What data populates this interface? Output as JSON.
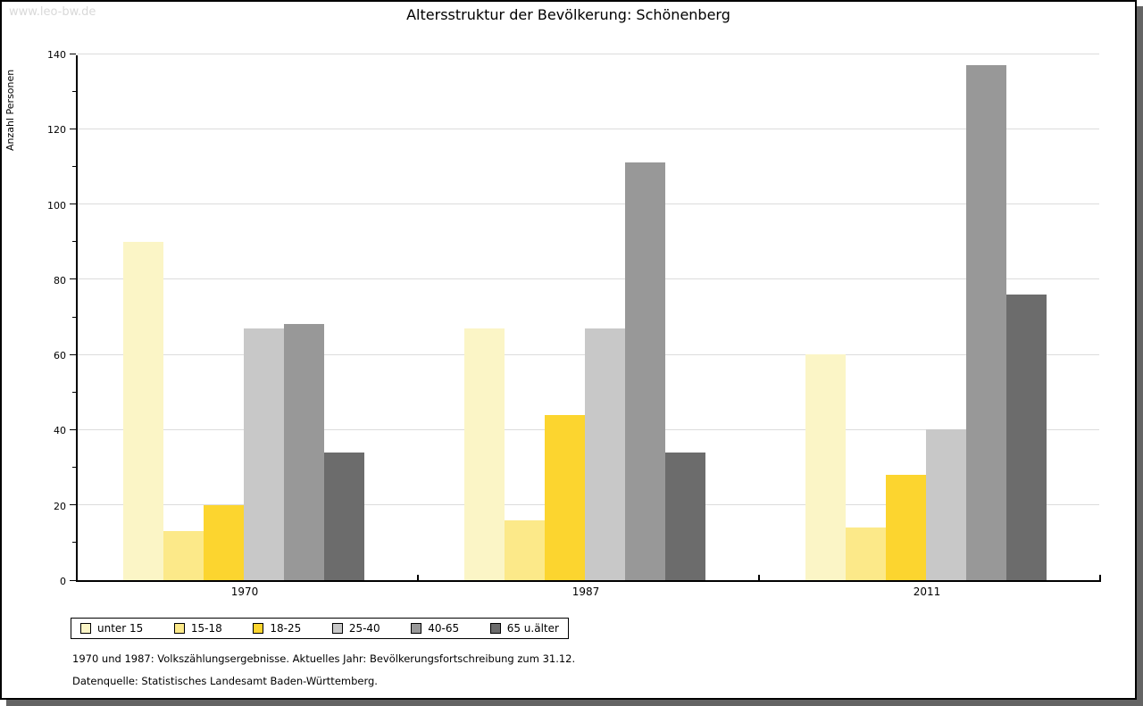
{
  "watermark": "www.leo-bw.de",
  "header": {
    "title": "Altersstruktur der Bevölkerung: Schönenberg"
  },
  "chart_data": {
    "type": "bar",
    "title": "Altersstruktur der Bevölkerung: Schönenberg",
    "xlabel": "",
    "ylabel": "Anzahl Personen",
    "categories": [
      "1970",
      "1987",
      "2011"
    ],
    "series": [
      {
        "name": "unter 15",
        "color": "#fbf5c6",
        "values": [
          90,
          67,
          60
        ]
      },
      {
        "name": "15-18",
        "color": "#fce989",
        "values": [
          13,
          16,
          14
        ]
      },
      {
        "name": "18-25",
        "color": "#fcd52f",
        "values": [
          20,
          44,
          28
        ]
      },
      {
        "name": "25-40",
        "color": "#c8c8c8",
        "values": [
          67,
          67,
          40
        ]
      },
      {
        "name": "40-65",
        "color": "#989898",
        "values": [
          68,
          111,
          137
        ]
      },
      {
        "name": "65 u.älter",
        "color": "#6c6c6c",
        "values": [
          34,
          34,
          76
        ]
      }
    ],
    "ylim": [
      0,
      140
    ],
    "ytick_step": 20,
    "y_minor_step": 10,
    "grid": true,
    "legend_position": "bottom-left"
  },
  "footnotes": {
    "line1": "1970 und 1987: Volkszählungsergebnisse. Aktuelles Jahr: Bevölkerungsfortschreibung zum 31.12.",
    "line2": "Datenquelle: Statistisches Landesamt Baden-Württemberg."
  },
  "colors": {
    "grid": "#dcdcdc",
    "axis": "#000000",
    "frame_shadow": "#646464",
    "watermark": "#d9d9d9"
  }
}
